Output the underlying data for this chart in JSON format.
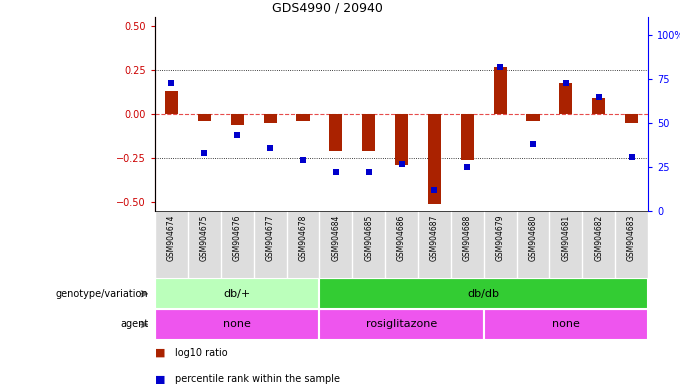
{
  "title": "GDS4990 / 20940",
  "samples": [
    "GSM904674",
    "GSM904675",
    "GSM904676",
    "GSM904677",
    "GSM904678",
    "GSM904684",
    "GSM904685",
    "GSM904686",
    "GSM904687",
    "GSM904688",
    "GSM904679",
    "GSM904680",
    "GSM904681",
    "GSM904682",
    "GSM904683"
  ],
  "log10_ratio": [
    0.13,
    -0.04,
    -0.06,
    -0.05,
    -0.04,
    -0.21,
    -0.21,
    -0.29,
    -0.51,
    -0.26,
    0.27,
    -0.04,
    0.18,
    0.09,
    -0.05
  ],
  "percentile": [
    73,
    33,
    43,
    36,
    29,
    22,
    22,
    27,
    12,
    25,
    82,
    38,
    73,
    65,
    31
  ],
  "genotype_groups": [
    {
      "label": "db/+",
      "start": 0,
      "end": 5,
      "color": "#BBFFBB"
    },
    {
      "label": "db/db",
      "start": 5,
      "end": 15,
      "color": "#33CC33"
    }
  ],
  "agent_groups": [
    {
      "label": "none",
      "start": 0,
      "end": 5,
      "color": "#EE55EE"
    },
    {
      "label": "rosiglitazone",
      "start": 5,
      "end": 10,
      "color": "#EE55EE"
    },
    {
      "label": "none",
      "start": 10,
      "end": 15,
      "color": "#EE55EE"
    }
  ],
  "bar_color": "#AA2200",
  "dot_color": "#0000CC",
  "zero_line_color": "#DD0000",
  "ylim_left": [
    -0.55,
    0.55
  ],
  "ylim_right": [
    0,
    110
  ],
  "yticks_left": [
    -0.5,
    -0.25,
    0,
    0.25,
    0.5
  ],
  "yticks_right": [
    0,
    25,
    50,
    75,
    100
  ],
  "legend_items": [
    {
      "label": "log10 ratio",
      "color": "#AA2200"
    },
    {
      "label": "percentile rank within the sample",
      "color": "#0000CC"
    }
  ]
}
